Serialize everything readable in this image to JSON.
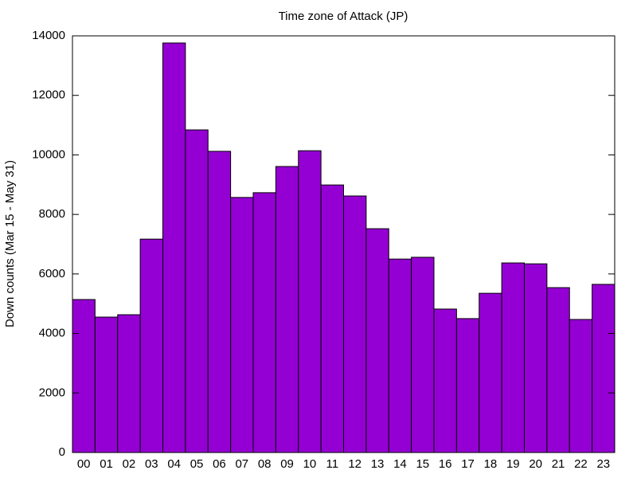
{
  "chart_data": {
    "type": "bar",
    "title": "Time zone of Attack (JP)",
    "y_label": "Down counts (Mar 15 - May 31)",
    "categories": [
      "00",
      "01",
      "02",
      "03",
      "04",
      "05",
      "06",
      "07",
      "08",
      "09",
      "10",
      "11",
      "12",
      "13",
      "14",
      "15",
      "16",
      "17",
      "18",
      "19",
      "20",
      "21",
      "22",
      "23"
    ],
    "values": [
      5140,
      4550,
      4630,
      7170,
      13760,
      10840,
      10120,
      8570,
      8730,
      9610,
      10140,
      8990,
      8620,
      7520,
      6500,
      6560,
      4820,
      4500,
      5350,
      6370,
      6340,
      5540,
      4470,
      5650
    ],
    "color": "#9400d3",
    "ylim": [
      0,
      14000
    ],
    "yticks": [
      0,
      2000,
      4000,
      6000,
      8000,
      10000,
      12000,
      14000
    ],
    "grid": false
  }
}
